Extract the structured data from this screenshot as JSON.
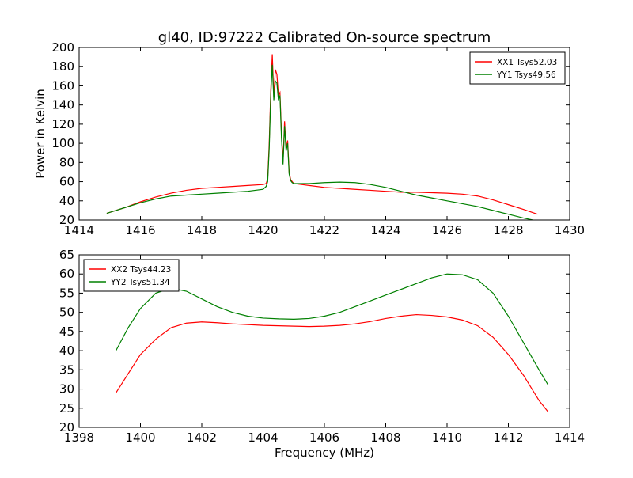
{
  "title": "gl40, ID:97222 Calibrated On-source spectrum",
  "chart_data": [
    {
      "type": "line",
      "title": "gl40, ID:97222 Calibrated On-source spectrum",
      "xlabel": "",
      "ylabel": "Power in Kelvin",
      "xlim": [
        1414,
        1430
      ],
      "ylim": [
        20,
        200
      ],
      "xticks": [
        1414,
        1416,
        1418,
        1420,
        1422,
        1424,
        1426,
        1428,
        1430
      ],
      "yticks": [
        20,
        40,
        60,
        80,
        100,
        120,
        140,
        160,
        180,
        200
      ],
      "legend_position": "top-right",
      "grid": false,
      "series": [
        {
          "name": "XX1 Tsys52.03",
          "color": "#ff0000",
          "x": [
            1414.9,
            1415.5,
            1416.0,
            1416.5,
            1417.0,
            1417.5,
            1418.0,
            1418.5,
            1419.0,
            1419.5,
            1420.0,
            1420.1,
            1420.15,
            1420.2,
            1420.25,
            1420.3,
            1420.35,
            1420.4,
            1420.45,
            1420.5,
            1420.55,
            1420.6,
            1420.65,
            1420.7,
            1420.75,
            1420.8,
            1420.85,
            1420.9,
            1420.95,
            1421.0,
            1421.5,
            1422.0,
            1422.5,
            1423.0,
            1423.5,
            1424.0,
            1424.5,
            1425.0,
            1425.5,
            1426.0,
            1426.5,
            1427.0,
            1427.5,
            1428.0,
            1428.5,
            1428.95
          ],
          "y": [
            27,
            33,
            39,
            44,
            48,
            51,
            53,
            54,
            55,
            56,
            57,
            58,
            63,
            100,
            155,
            193,
            148,
            177,
            172,
            150,
            153,
            110,
            80,
            123,
            95,
            103,
            70,
            62,
            60,
            58,
            56,
            54,
            53,
            52,
            51,
            50,
            49,
            49,
            48.5,
            48,
            47,
            45,
            41,
            36,
            31,
            26
          ]
        },
        {
          "name": "YY1 Tsys49.56",
          "color": "#008000",
          "x": [
            1414.9,
            1415.5,
            1416.0,
            1416.5,
            1417.0,
            1417.5,
            1418.0,
            1418.5,
            1419.0,
            1419.5,
            1420.0,
            1420.1,
            1420.15,
            1420.2,
            1420.25,
            1420.3,
            1420.35,
            1420.4,
            1420.45,
            1420.5,
            1420.55,
            1420.6,
            1420.65,
            1420.7,
            1420.75,
            1420.8,
            1420.85,
            1420.9,
            1420.95,
            1421.0,
            1421.5,
            1422.0,
            1422.5,
            1423.0,
            1423.5,
            1424.0,
            1424.5,
            1425.0,
            1425.5,
            1426.0,
            1426.5,
            1427.0,
            1427.5,
            1428.0,
            1428.5,
            1428.95
          ],
          "y": [
            27,
            33,
            38,
            42,
            45,
            46,
            47,
            48,
            49,
            50,
            52,
            55,
            60,
            95,
            150,
            182,
            145,
            165,
            163,
            145,
            150,
            105,
            78,
            118,
            92,
            100,
            68,
            61,
            59,
            58,
            58,
            59,
            59.5,
            59,
            57,
            54,
            50,
            46,
            43,
            40,
            37,
            34,
            30,
            26,
            22,
            19
          ]
        }
      ]
    },
    {
      "type": "line",
      "title": "",
      "xlabel": "Frequency (MHz)",
      "ylabel": "",
      "xlim": [
        1398,
        1414
      ],
      "ylim": [
        20,
        65
      ],
      "xticks": [
        1398,
        1400,
        1402,
        1404,
        1406,
        1408,
        1410,
        1412,
        1414
      ],
      "yticks": [
        20,
        25,
        30,
        35,
        40,
        45,
        50,
        55,
        60,
        65
      ],
      "legend_position": "top-left",
      "grid": false,
      "series": [
        {
          "name": "XX2 Tsys44.23",
          "color": "#ff0000",
          "x": [
            1399.2,
            1399.6,
            1400.0,
            1400.5,
            1401.0,
            1401.5,
            1402.0,
            1402.5,
            1403.0,
            1403.5,
            1404.0,
            1404.5,
            1405.0,
            1405.5,
            1406.0,
            1406.5,
            1407.0,
            1407.5,
            1408.0,
            1408.5,
            1409.0,
            1409.5,
            1410.0,
            1410.5,
            1411.0,
            1411.5,
            1412.0,
            1412.5,
            1413.0,
            1413.3
          ],
          "y": [
            29,
            34,
            39,
            43,
            46,
            47.2,
            47.5,
            47.3,
            47,
            46.8,
            46.6,
            46.5,
            46.4,
            46.3,
            46.4,
            46.6,
            47,
            47.6,
            48.4,
            49,
            49.4,
            49.2,
            48.8,
            48,
            46.5,
            43.5,
            39,
            33.5,
            27,
            24
          ]
        },
        {
          "name": "YY2 Tsys51.34",
          "color": "#008000",
          "x": [
            1399.2,
            1399.6,
            1400.0,
            1400.5,
            1401.0,
            1401.5,
            1402.0,
            1402.5,
            1403.0,
            1403.5,
            1404.0,
            1404.5,
            1405.0,
            1405.5,
            1406.0,
            1406.5,
            1407.0,
            1407.5,
            1408.0,
            1408.5,
            1409.0,
            1409.5,
            1410.0,
            1410.5,
            1411.0,
            1411.5,
            1412.0,
            1412.5,
            1413.0,
            1413.3
          ],
          "y": [
            40,
            46,
            51,
            55,
            56.3,
            55.5,
            53.5,
            51.5,
            50,
            49,
            48.5,
            48.3,
            48.2,
            48.4,
            49,
            50,
            51.5,
            53,
            54.5,
            56,
            57.5,
            59,
            60,
            59.8,
            58.5,
            55,
            49,
            42,
            35,
            31
          ]
        }
      ]
    }
  ]
}
